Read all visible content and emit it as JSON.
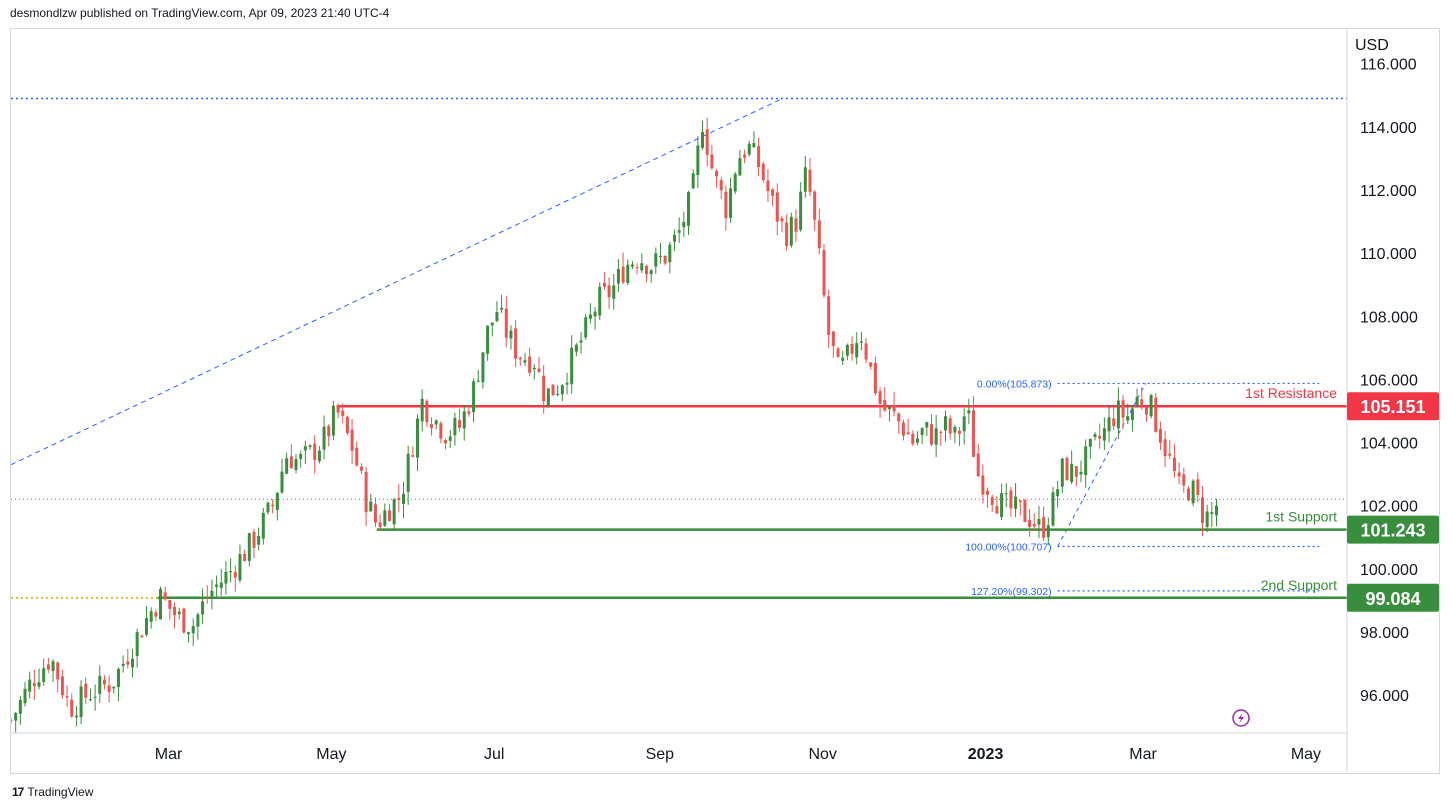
{
  "header": {
    "publish_text": "desmondlzw published on TradingView.com, Apr 09, 2023 21:40 UTC-4"
  },
  "footer": {
    "logo_text": "TradingView"
  },
  "chart_data": {
    "type": "candlestick",
    "currency_label": "USD",
    "y_ticks": [
      "116.000",
      "114.000",
      "112.000",
      "110.000",
      "108.000",
      "106.000",
      "104.000",
      "102.000",
      "100.000",
      "98.000",
      "96.000"
    ],
    "ylim": [
      94.8,
      117.1
    ],
    "x_ticks": [
      {
        "label": "Mar",
        "t": 59
      },
      {
        "label": "May",
        "t": 120
      },
      {
        "label": "Jul",
        "t": 181
      },
      {
        "label": "Sep",
        "t": 243
      },
      {
        "label": "Nov",
        "t": 304
      },
      {
        "label": "2023",
        "t": 365
      },
      {
        "label": "Mar",
        "t": 424
      },
      {
        "label": "May",
        "t": 485
      }
    ],
    "xlim": [
      0,
      500
    ],
    "last_price": 102.2,
    "levels": [
      {
        "name": "1st Resistance",
        "value": 105.151,
        "price_label": "105.151",
        "color": "#f23645",
        "t_start": 122,
        "label_color": "#f23645"
      },
      {
        "name": "1st Support",
        "value": 101.243,
        "price_label": "101.243",
        "color": "#388e3c",
        "t_start": 137,
        "label_color": "#388e3c"
      },
      {
        "name": "2nd Support",
        "value": 99.084,
        "price_label": "99.084",
        "color": "#388e3c",
        "t_start": 55,
        "label_color": "#388e3c"
      }
    ],
    "horizontal_dotted": [
      {
        "value": 114.9,
        "color": "#2962ff"
      },
      {
        "value": 99.08,
        "color": "#d4a900"
      }
    ],
    "trendline": {
      "t1": 0,
      "v1": 103.3,
      "t2": 289,
      "v2": 114.9
    },
    "fibonacci": {
      "levels": [
        {
          "label": "0.00%(105.873)",
          "value": 105.873
        },
        {
          "label": "100.00%(100.707)",
          "value": 100.707
        },
        {
          "label": "127.20%(99.302)",
          "value": 99.302
        }
      ],
      "t_start": 392,
      "t_end": 490,
      "diag": {
        "t1": 392,
        "v1": 100.707,
        "t2": 425,
        "v2": 105.873
      }
    },
    "series_knots": [
      [
        0,
        95.2
      ],
      [
        8,
        96.5
      ],
      [
        15,
        97.2
      ],
      [
        22,
        95.6
      ],
      [
        30,
        96.1
      ],
      [
        38,
        96.4
      ],
      [
        45,
        97.5
      ],
      [
        52,
        98.6
      ],
      [
        56,
        99.1
      ],
      [
        62,
        98.5
      ],
      [
        68,
        98.2
      ],
      [
        74,
        99.2
      ],
      [
        82,
        99.9
      ],
      [
        90,
        100.8
      ],
      [
        98,
        102.0
      ],
      [
        103,
        103.6
      ],
      [
        108,
        103.4
      ],
      [
        113,
        103.7
      ],
      [
        118,
        104.2
      ],
      [
        122,
        105.0
      ],
      [
        128,
        103.8
      ],
      [
        133,
        102.2
      ],
      [
        137,
        101.4
      ],
      [
        141,
        101.9
      ],
      [
        146,
        102.3
      ],
      [
        150,
        103.8
      ],
      [
        154,
        105.3
      ],
      [
        158,
        104.8
      ],
      [
        163,
        104.3
      ],
      [
        168,
        104.5
      ],
      [
        173,
        105.6
      ],
      [
        178,
        107.4
      ],
      [
        182,
        108.2
      ],
      [
        186,
        107.4
      ],
      [
        190,
        106.8
      ],
      [
        196,
        106.6
      ],
      [
        200,
        105.5
      ],
      [
        205,
        105.8
      ],
      [
        210,
        106.6
      ],
      [
        215,
        107.5
      ],
      [
        220,
        108.5
      ],
      [
        225,
        108.8
      ],
      [
        230,
        109.6
      ],
      [
        235,
        109.9
      ],
      [
        240,
        109.6
      ],
      [
        245,
        109.9
      ],
      [
        250,
        110.6
      ],
      [
        255,
        111.8
      ],
      [
        259,
        114.2
      ],
      [
        263,
        112.5
      ],
      [
        268,
        111.4
      ],
      [
        272,
        113.0
      ],
      [
        276,
        113.4
      ],
      [
        280,
        112.8
      ],
      [
        285,
        111.6
      ],
      [
        290,
        110.6
      ],
      [
        294,
        111.0
      ],
      [
        298,
        112.6
      ],
      [
        302,
        110.3
      ],
      [
        306,
        107.5
      ],
      [
        310,
        106.2
      ],
      [
        314,
        106.8
      ],
      [
        318,
        107.6
      ],
      [
        322,
        106.3
      ],
      [
        326,
        105.1
      ],
      [
        330,
        104.9
      ],
      [
        334,
        104.5
      ],
      [
        338,
        104.0
      ],
      [
        342,
        104.4
      ],
      [
        346,
        104.2
      ],
      [
        350,
        104.5
      ],
      [
        354,
        104.1
      ],
      [
        358,
        105.1
      ],
      [
        362,
        103.0
      ],
      [
        366,
        102.6
      ],
      [
        370,
        102.1
      ],
      [
        374,
        101.9
      ],
      [
        378,
        101.8
      ],
      [
        382,
        101.6
      ],
      [
        386,
        101.2
      ],
      [
        390,
        102.0
      ],
      [
        394,
        103.2
      ],
      [
        398,
        103.0
      ],
      [
        402,
        103.4
      ],
      [
        406,
        103.9
      ],
      [
        410,
        104.4
      ],
      [
        414,
        105.0
      ],
      [
        418,
        104.8
      ],
      [
        422,
        105.4
      ],
      [
        426,
        105.3
      ],
      [
        430,
        104.4
      ],
      [
        434,
        103.4
      ],
      [
        438,
        102.4
      ],
      [
        442,
        102.6
      ],
      [
        446,
        101.8
      ],
      [
        449,
        101.6
      ],
      [
        452,
        102.1
      ]
    ]
  }
}
